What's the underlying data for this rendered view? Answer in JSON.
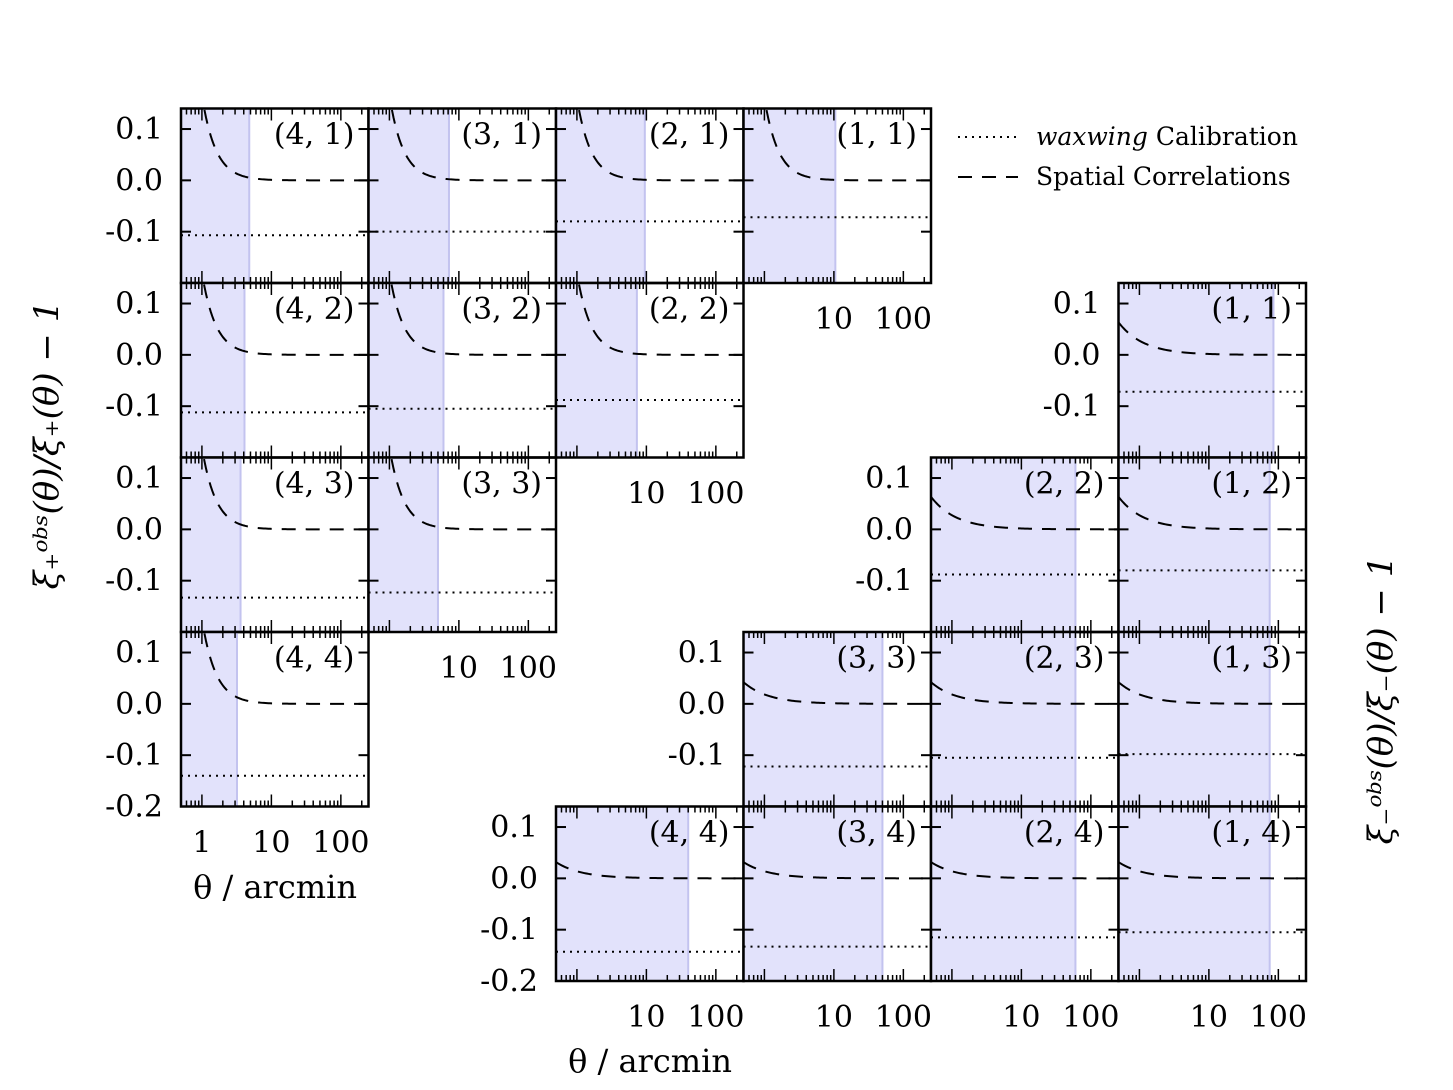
{
  "chart_data": {
    "type": "line",
    "x_scale": "log",
    "xlim": [
      0.5,
      250
    ],
    "ylim": [
      -0.2,
      0.14
    ],
    "yticks": [
      0.1,
      0.0,
      -0.1,
      -0.2
    ],
    "ytick_labels": [
      "0.1",
      "0.0",
      "-0.1",
      "-0.2"
    ],
    "legend": [
      {
        "label_italic": "waxwing",
        "label_rest": " Calibration",
        "style": "dotted"
      },
      {
        "label": "Spatial Correlations",
        "style": "dashed"
      }
    ],
    "shade_color": "#e2e2fb",
    "shade_edge": "#c3c3ef",
    "xi_plus": {
      "ylabel": "ξ₊ᵒᵇˢ(θ)/ξ₊(θ) − 1",
      "xlabel": "θ / arcmin",
      "xtick_labels_bottom": [
        "1",
        "10",
        "100"
      ],
      "xtick_labels_upper": [
        "10",
        "100"
      ],
      "panels": [
        {
          "label": "(4, 1)",
          "shade_max": 4.8,
          "calibration": -0.107,
          "spatial_amp": 0.165
        },
        {
          "label": "(3, 1)",
          "shade_max": 7.2,
          "calibration": -0.1,
          "spatial_amp": 0.165
        },
        {
          "label": "(2, 1)",
          "shade_max": 9.5,
          "calibration": -0.08,
          "spatial_amp": 0.16
        },
        {
          "label": "(1, 1)",
          "shade_max": 10.5,
          "calibration": -0.072,
          "spatial_amp": 0.16
        },
        {
          "label": "(4, 2)",
          "shade_max": 4.1,
          "calibration": -0.112,
          "spatial_amp": 0.16
        },
        {
          "label": "(3, 2)",
          "shade_max": 6.0,
          "calibration": -0.105,
          "spatial_amp": 0.16
        },
        {
          "label": "(2, 2)",
          "shade_max": 7.3,
          "calibration": -0.088,
          "spatial_amp": 0.16
        },
        {
          "label": "(4, 3)",
          "shade_max": 3.6,
          "calibration": -0.133,
          "spatial_amp": 0.16
        },
        {
          "label": "(3, 3)",
          "shade_max": 5.0,
          "calibration": -0.123,
          "spatial_amp": 0.16
        },
        {
          "label": "(4, 4)",
          "shade_max": 3.2,
          "calibration": -0.14,
          "spatial_amp": 0.165
        }
      ]
    },
    "xi_minus": {
      "ylabel": "ξ₋ᵒᵇˢ(θ)/ξ₋(θ) − 1",
      "xlabel": "θ / arcmin",
      "xtick_labels": [
        "10",
        "100"
      ],
      "panels": [
        {
          "label": "(1, 1)",
          "shade_max": 85,
          "calibration": -0.072,
          "spatial_amp": 0.012
        },
        {
          "label": "(2, 2)",
          "shade_max": 60,
          "calibration": -0.088,
          "spatial_amp": 0.012
        },
        {
          "label": "(1, 2)",
          "shade_max": 75,
          "calibration": -0.08,
          "spatial_amp": 0.012
        },
        {
          "label": "(3, 3)",
          "shade_max": 50,
          "calibration": -0.122,
          "spatial_amp": 0.008
        },
        {
          "label": "(2, 3)",
          "shade_max": 60,
          "calibration": -0.105,
          "spatial_amp": 0.008
        },
        {
          "label": "(1, 3)",
          "shade_max": 75,
          "calibration": -0.098,
          "spatial_amp": 0.008
        },
        {
          "label": "(4, 4)",
          "shade_max": 40,
          "calibration": -0.143,
          "spatial_amp": 0.006
        },
        {
          "label": "(3, 4)",
          "shade_max": 50,
          "calibration": -0.133,
          "spatial_amp": 0.006
        },
        {
          "label": "(2, 4)",
          "shade_max": 60,
          "calibration": -0.115,
          "spatial_amp": 0.006
        },
        {
          "label": "(1, 4)",
          "shade_max": 75,
          "calibration": -0.105,
          "spatial_amp": 0.006
        }
      ]
    }
  }
}
